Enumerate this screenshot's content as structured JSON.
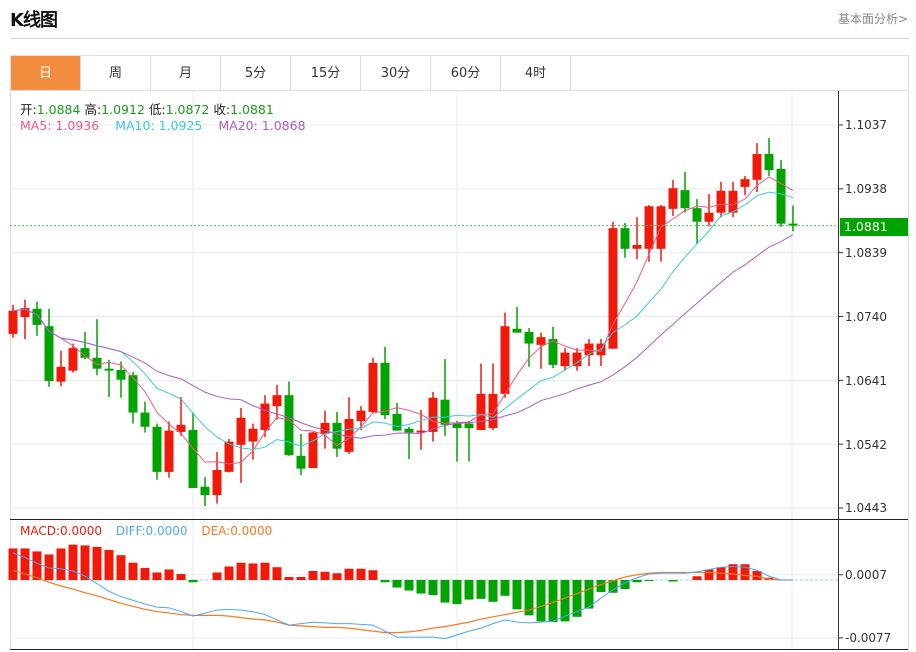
{
  "header": {
    "title": "K线图",
    "link": "基本面分析>"
  },
  "tabs": [
    {
      "label": "日",
      "active": true
    },
    {
      "label": "周"
    },
    {
      "label": "月"
    },
    {
      "label": "5分"
    },
    {
      "label": "15分"
    },
    {
      "label": "30分"
    },
    {
      "label": "60分"
    },
    {
      "label": "4时"
    }
  ],
  "ohlc_info": {
    "open_label": "开:",
    "open": "1.0884",
    "high_label": "高:",
    "high": "1.0912",
    "low_label": "低:",
    "low": "1.0872",
    "close_label": "收:",
    "close": "1.0881"
  },
  "ma_info": {
    "ma5": "MA5: 1.0936",
    "ma10": "MA10: 1.0925",
    "ma20": "MA20: 1.0868"
  },
  "macd_info": {
    "macd": "MACD:0.0000",
    "diff": "DIFF:0.0000",
    "dea": "DEA:0.0000"
  },
  "colors": {
    "up": "#f01a0a",
    "down": "#00a300",
    "ma5": "#f0588a",
    "ma10": "#3ec7dc",
    "ma20": "#b25ac8",
    "diff": "#4ba8f0",
    "dea": "#f57a20",
    "active_tab": "#f28c3f"
  },
  "chart_data": {
    "type": "candlestick",
    "price_axis": {
      "ticks": [
        "1.1037",
        "1.0938",
        "1.0839",
        "1.0740",
        "1.0641",
        "1.0542",
        "1.0443"
      ],
      "range": [
        1.0443,
        1.1037
      ]
    },
    "current_price": "1.0881",
    "candles": [
      [
        1.0713,
        1.0758,
        1.0707,
        1.0749
      ],
      [
        1.0739,
        1.0766,
        1.0705,
        1.0753
      ],
      [
        1.0752,
        1.0763,
        1.071,
        1.0727
      ],
      [
        1.0725,
        1.0752,
        1.0631,
        1.064
      ],
      [
        1.0639,
        1.0687,
        1.0632,
        1.0662
      ],
      [
        1.0656,
        1.0698,
        1.0653,
        1.0691
      ],
      [
        1.0691,
        1.0716,
        1.0674,
        1.0676
      ],
      [
        1.0676,
        1.0736,
        1.0649,
        1.0659
      ],
      [
        1.0659,
        1.0673,
        1.0615,
        1.0656
      ],
      [
        1.0657,
        1.067,
        1.0614,
        1.0642
      ],
      [
        1.0649,
        1.0654,
        1.0574,
        1.0591
      ],
      [
        1.0591,
        1.0608,
        1.056,
        1.0569
      ],
      [
        1.0569,
        1.0574,
        1.0487,
        1.0499
      ],
      [
        1.0499,
        1.0577,
        1.049,
        1.0563
      ],
      [
        1.0561,
        1.0615,
        1.0555,
        1.0572
      ],
      [
        1.0564,
        1.0591,
        1.0474,
        1.0474
      ],
      [
        1.0476,
        1.0491,
        1.0446,
        1.0463
      ],
      [
        1.0463,
        1.053,
        1.045,
        1.0502
      ],
      [
        1.0499,
        1.055,
        1.0498,
        1.0546
      ],
      [
        1.0541,
        1.0598,
        1.0482,
        1.0583
      ],
      [
        1.0546,
        1.0574,
        1.0518,
        1.0566
      ],
      [
        1.0564,
        1.0618,
        1.0553,
        1.0605
      ],
      [
        1.0601,
        1.0634,
        1.058,
        1.0618
      ],
      [
        1.0618,
        1.0639,
        1.0524,
        1.0525
      ],
      [
        1.0524,
        1.0558,
        1.0494,
        1.0504
      ],
      [
        1.0505,
        1.0561,
        1.0505,
        1.056
      ],
      [
        1.0558,
        1.0594,
        1.0535,
        1.0575
      ],
      [
        1.0575,
        1.0592,
        1.0522,
        1.0535
      ],
      [
        1.053,
        1.0615,
        1.0527,
        1.0581
      ],
      [
        1.0578,
        1.0601,
        1.0564,
        1.0594
      ],
      [
        1.0592,
        1.0676,
        1.0591,
        1.0668
      ],
      [
        1.0668,
        1.0693,
        1.0581,
        1.0587
      ],
      [
        1.0589,
        1.0606,
        1.0563,
        1.0563
      ],
      [
        1.0566,
        1.0569,
        1.0519,
        1.056
      ],
      [
        1.056,
        1.0595,
        1.0533,
        1.0563
      ],
      [
        1.0561,
        1.0623,
        1.0546,
        1.0614
      ],
      [
        1.0611,
        1.0674,
        1.0555,
        1.0572
      ],
      [
        1.0574,
        1.0578,
        1.0515,
        1.0567
      ],
      [
        1.0574,
        1.0578,
        1.0515,
        1.0567
      ],
      [
        1.0564,
        1.0667,
        1.0564,
        1.062
      ],
      [
        1.0567,
        1.0667,
        1.0564,
        1.062
      ],
      [
        1.062,
        1.0746,
        1.0614,
        1.0725
      ],
      [
        1.0721,
        1.0755,
        1.0715,
        1.0715
      ],
      [
        1.0716,
        1.0722,
        1.0662,
        1.0698
      ],
      [
        1.0696,
        1.0715,
        1.0659,
        1.0708
      ],
      [
        1.0705,
        1.0724,
        1.066,
        1.0665
      ],
      [
        1.0663,
        1.0691,
        1.0656,
        1.0684
      ],
      [
        1.0663,
        1.0691,
        1.0656,
        1.0684
      ],
      [
        1.068,
        1.0705,
        1.0663,
        1.0698
      ],
      [
        1.068,
        1.0705,
        1.0663,
        1.0698
      ],
      [
        1.069,
        1.0887,
        1.069,
        1.0877
      ],
      [
        1.0877,
        1.0885,
        1.0831,
        1.0845
      ],
      [
        1.0845,
        1.0894,
        1.0829,
        1.0851
      ],
      [
        1.0845,
        1.0913,
        1.0825,
        1.0911
      ],
      [
        1.0845,
        1.0913,
        1.0825,
        1.0911
      ],
      [
        1.0907,
        1.0952,
        1.0896,
        1.0939
      ],
      [
        1.0936,
        1.0964,
        1.0901,
        1.0908
      ],
      [
        1.0908,
        1.0922,
        1.0853,
        1.0887
      ],
      [
        1.0887,
        1.093,
        1.088,
        1.0901
      ],
      [
        1.0901,
        1.0949,
        1.0894,
        1.0935
      ],
      [
        1.0901,
        1.0949,
        1.0894,
        1.0935
      ],
      [
        1.0941,
        1.0958,
        1.0928,
        1.0953
      ],
      [
        1.0952,
        1.1009,
        1.0933,
        1.0992
      ],
      [
        1.0992,
        1.1017,
        1.0958,
        1.0967
      ],
      [
        1.0969,
        1.0983,
        1.0879,
        1.0884
      ],
      [
        1.0884,
        1.0912,
        1.0872,
        1.0881
      ]
    ],
    "candle_format": [
      "open",
      "high",
      "low",
      "close"
    ],
    "ma_periods": [
      5,
      10,
      20
    ],
    "macd": {
      "axis_ticks": [
        "0.0007",
        "-0.0077"
      ],
      "histogram": [
        0.0042,
        0.0042,
        0.0038,
        0.0034,
        0.0042,
        0.0047,
        0.0046,
        0.0044,
        0.004,
        0.0033,
        0.0023,
        0.0016,
        0.001,
        0.0014,
        0.0008,
        -0.0003,
        0,
        0.001,
        0.0018,
        0.0023,
        0.0022,
        0.0023,
        0.0017,
        0.0004,
        0.0004,
        0.0012,
        0.0011,
        0.0009,
        0.0015,
        0.0015,
        0.0013,
        -0.0003,
        -0.001,
        -0.0014,
        -0.0018,
        -0.002,
        -0.003,
        -0.0032,
        -0.0026,
        -0.0025,
        -0.0029,
        -0.0021,
        -0.0039,
        -0.0047,
        -0.0055,
        -0.0056,
        -0.0055,
        -0.0049,
        -0.0038,
        -0.0016,
        -0.0017,
        -0.0012,
        -0.0003,
        -0.0001,
        0,
        -0.0002,
        0,
        0.0005,
        0.0014,
        0.0017,
        0.0021,
        0.0021,
        0.0012,
        0.0003,
        0,
        0
      ],
      "diff": [
        0.0036,
        0.003,
        0.0022,
        0.0016,
        0.0015,
        0.0012,
        0.0005,
        -0.0005,
        -0.0015,
        -0.0022,
        -0.0027,
        -0.0032,
        -0.0036,
        -0.0037,
        -0.0042,
        -0.0048,
        -0.0044,
        -0.004,
        -0.0039,
        -0.004,
        -0.0042,
        -0.0046,
        -0.0053,
        -0.006,
        -0.0058,
        -0.0056,
        -0.0057,
        -0.0058,
        -0.0058,
        -0.0059,
        -0.006,
        -0.0068,
        -0.0076,
        -0.0076,
        -0.0076,
        -0.0076,
        -0.0078,
        -0.0073,
        -0.0068,
        -0.0064,
        -0.0058,
        -0.0053,
        -0.0056,
        -0.0057,
        -0.0056,
        -0.0055,
        -0.0048,
        -0.0042,
        -0.0036,
        -0.0024,
        -0.0013,
        -0.0004,
        0.0003,
        0.0008,
        0.0009,
        0.0009,
        0.0009,
        0.0011,
        0.0014,
        0.0017,
        0.0018,
        0.0017,
        0.0013,
        0.0005,
        0,
        0
      ],
      "dea": [
        0.0013,
        0.0008,
        0.0003,
        -0.0003,
        -0.0008,
        -0.0012,
        -0.0017,
        -0.0021,
        -0.0026,
        -0.0031,
        -0.0035,
        -0.0039,
        -0.0042,
        -0.0044,
        -0.0046,
        -0.0047,
        -0.0047,
        -0.0047,
        -0.0048,
        -0.005,
        -0.0052,
        -0.0053,
        -0.0056,
        -0.006,
        -0.0061,
        -0.0062,
        -0.0063,
        -0.0063,
        -0.0064,
        -0.0066,
        -0.0068,
        -0.007,
        -0.007,
        -0.0069,
        -0.0067,
        -0.0064,
        -0.0062,
        -0.0059,
        -0.0056,
        -0.0052,
        -0.0049,
        -0.0046,
        -0.0043,
        -0.004,
        -0.0035,
        -0.003,
        -0.0024,
        -0.0018,
        -0.0012,
        -0.0006,
        -0.0001,
        0.0004,
        0.0007,
        0.0009,
        0.001,
        0.001,
        0.001,
        0.001,
        0.001,
        0.0009,
        0.0008,
        0.0006,
        0.0005,
        0.0001,
        0,
        0
      ]
    }
  }
}
